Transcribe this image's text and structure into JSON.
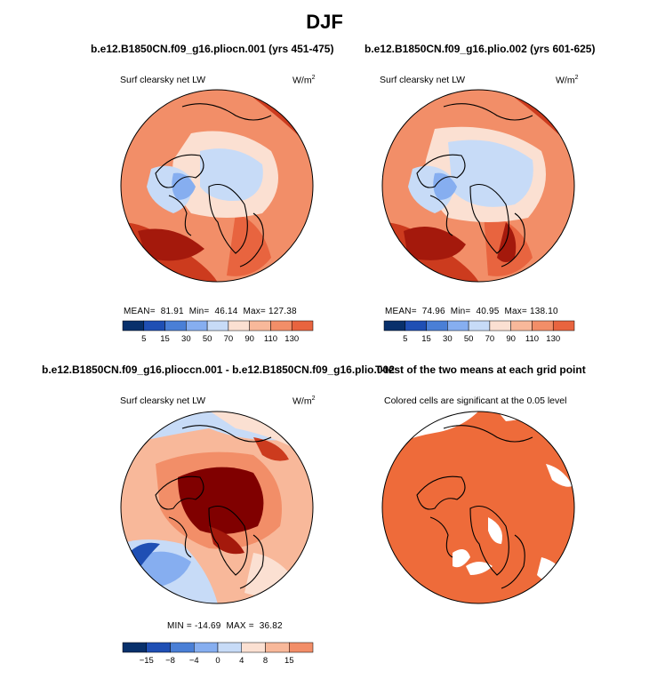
{
  "figure": {
    "title": "DJF",
    "colors": {
      "diverging": [
        "#08306b",
        "#1f4fb4",
        "#4a7fd6",
        "#86aef0",
        "#c7dbf7",
        "#fbe0d2",
        "#f8b89a",
        "#f28e68",
        "#e8643f",
        "#cc3b1e",
        "#a4190c",
        "#800000"
      ],
      "significance_fill": "#ee6b3a",
      "land_outline": "#000000"
    }
  },
  "panels": [
    {
      "id": "case1",
      "title": "b.e12.B1850CN.f09_g16.pliocn.001 (yrs 451-475)",
      "left_label": "Surf clearsky net LW",
      "units_base": "W/m",
      "units_sup": "2",
      "stats": {
        "mean_label": "MEAN=",
        "mean": "81.91",
        "min_label": "Min=",
        "min": "46.14",
        "max_label": "Max=",
        "max": "127.38"
      },
      "colorbar_ticks": [
        "5",
        "15",
        "30",
        "50",
        "70",
        "90",
        "110",
        "130"
      ]
    },
    {
      "id": "case2",
      "title": "b.e12.B1850CN.f09_g16.plio.002 (yrs 601-625)",
      "left_label": "Surf clearsky net LW",
      "units_base": "W/m",
      "units_sup": "2",
      "stats": {
        "mean_label": "MEAN=",
        "mean": "74.96",
        "min_label": "Min=",
        "min": "40.95",
        "max_label": "Max=",
        "max": "138.10"
      },
      "colorbar_ticks": [
        "5",
        "15",
        "30",
        "50",
        "70",
        "90",
        "110",
        "130"
      ]
    },
    {
      "id": "difference",
      "title": "b.e12.B1850CN.f09_g16.plioccn.001 - b.e12.B1850CN.f09_g16.plio.002",
      "left_label": "Surf clearsky net LW",
      "units_base": "W/m",
      "units_sup": "2",
      "stats": {
        "min_label": "MIN =",
        "min": "-14.69",
        "max_label": "MAX =",
        "max": "36.82"
      },
      "colorbar_ticks": [
        "−15",
        "−8",
        "−4",
        "0",
        "4",
        "8",
        "15"
      ]
    },
    {
      "id": "ttest",
      "title": "T-test of the two means at each grid point",
      "left_label": "Colored cells are significant at the 0.05 level"
    }
  ],
  "chart_data": [
    {
      "type": "heatmap",
      "title": "b.e12.B1850CN.f09_g16.pliocn.001 (yrs 451-475)",
      "variable": "Surf clearsky net LW",
      "units": "W/m2",
      "projection": "north polar stereographic",
      "mean": 81.91,
      "min": 46.14,
      "max": 127.38,
      "colorbar_levels": [
        5,
        15,
        30,
        50,
        70,
        90,
        110,
        130
      ]
    },
    {
      "type": "heatmap",
      "title": "b.e12.B1850CN.f09_g16.plio.002 (yrs 601-625)",
      "variable": "Surf clearsky net LW",
      "units": "W/m2",
      "projection": "north polar stereographic",
      "mean": 74.96,
      "min": 40.95,
      "max": 138.1,
      "colorbar_levels": [
        5,
        15,
        30,
        50,
        70,
        90,
        110,
        130
      ]
    },
    {
      "type": "heatmap",
      "title": "b.e12.B1850CN.f09_g16.plioccn.001 - b.e12.B1850CN.f09_g16.plio.002",
      "variable": "Surf clearsky net LW",
      "units": "W/m2",
      "projection": "north polar stereographic",
      "min": -14.69,
      "max": 36.82,
      "colorbar_levels": [
        -15,
        -8,
        -4,
        0,
        4,
        8,
        15
      ]
    },
    {
      "type": "heatmap",
      "title": "T-test of the two means at each grid point",
      "subtitle": "Colored cells are significant at the 0.05 level",
      "projection": "north polar stereographic",
      "significance_level": 0.05
    }
  ]
}
